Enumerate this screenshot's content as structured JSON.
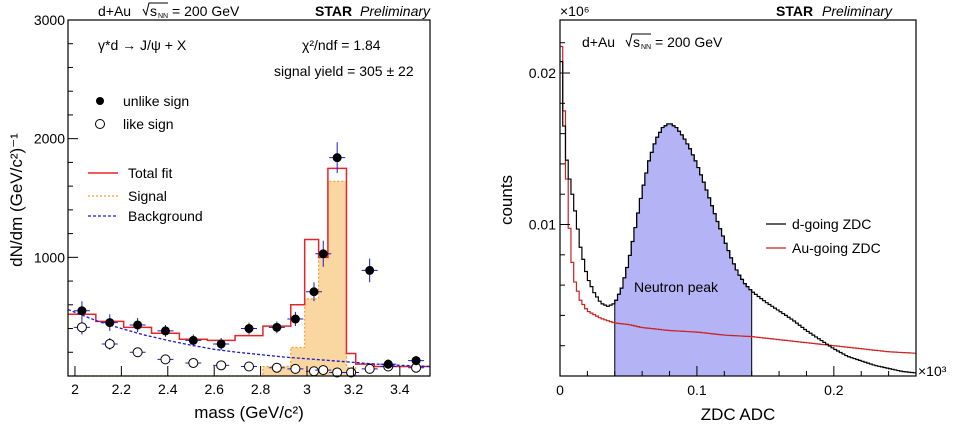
{
  "chart_data": [
    {
      "type": "scatter",
      "header": {
        "system": "d+Au",
        "energy_sym": "s",
        "energy_sub": "NN",
        "energy_val": "= 200 GeV",
        "experiment": "STAR",
        "status": "Preliminary"
      },
      "xlabel": "mass (GeV/c²)",
      "ylabel": "dN/dm (GeV/c²)⁻¹",
      "xlim": [
        1.97,
        3.53
      ],
      "ylim": [
        0,
        3000
      ],
      "x_ticks": [
        2,
        2.2,
        2.4,
        2.6,
        2.8,
        3,
        3.2,
        3.4
      ],
      "x_tick_labels": [
        "2",
        "2.2",
        "2.4",
        "2.6",
        "2.8",
        "3",
        "3.2",
        "3.4"
      ],
      "y_ticks": [
        1000,
        2000,
        3000
      ],
      "y_tick_labels": [
        "1000",
        "2000",
        "3000"
      ],
      "annotations": {
        "process": "γ*d → J/ψ + X",
        "chi2": "χ²/ndf = 1.84",
        "yield": "signal yield = 305 ± 22"
      },
      "legend": {
        "placement": "top-left",
        "unlike": "unlike sign",
        "like": "like sign",
        "total": "Total fit",
        "signal": "Signal",
        "background": "Background"
      },
      "colors": {
        "total": "#e8242b",
        "signal_fill": "#fad7a0",
        "signal_line": "#f0a030",
        "background": "#1a1acc"
      },
      "series": [
        {
          "name": "unlike sign",
          "marker": "filled-circle",
          "x": [
            2.03,
            2.15,
            2.27,
            2.39,
            2.51,
            2.63,
            2.75,
            2.87,
            2.95,
            3.03,
            3.07,
            3.13,
            3.27,
            3.35,
            3.47
          ],
          "y": [
            550,
            450,
            430,
            380,
            300,
            270,
            400,
            410,
            480,
            710,
            1030,
            1840,
            890,
            100,
            130
          ],
          "err": [
            80,
            70,
            60,
            50,
            50,
            50,
            50,
            50,
            60,
            80,
            110,
            130,
            100,
            40,
            40
          ]
        },
        {
          "name": "like sign",
          "marker": "open-circle",
          "x": [
            2.03,
            2.15,
            2.27,
            2.39,
            2.51,
            2.63,
            2.75,
            2.87,
            2.95,
            3.03,
            3.07,
            3.13,
            3.19,
            3.27,
            3.35,
            3.47
          ],
          "y": [
            410,
            270,
            200,
            140,
            110,
            90,
            80,
            70,
            60,
            40,
            50,
            30,
            30,
            60,
            80,
            70
          ],
          "err": [
            60,
            50,
            40,
            35,
            30,
            30,
            30,
            30,
            30,
            25,
            25,
            20,
            20,
            25,
            25,
            25
          ]
        },
        {
          "name": "Total fit",
          "style": "solid-histogram",
          "edges": [
            1.97,
            2.09,
            2.21,
            2.33,
            2.45,
            2.57,
            2.69,
            2.81,
            2.93,
            2.99,
            3.05,
            3.09,
            3.17,
            3.21,
            3.29,
            3.41,
            3.53
          ],
          "values": [
            520,
            460,
            410,
            360,
            310,
            300,
            340,
            420,
            600,
            1150,
            1000,
            1750,
            190,
            100,
            80,
            80
          ]
        },
        {
          "name": "Signal",
          "style": "filled-histogram",
          "edges": [
            1.97,
            2.09,
            2.21,
            2.33,
            2.45,
            2.57,
            2.69,
            2.81,
            2.93,
            2.99,
            3.05,
            3.09,
            3.17,
            3.21,
            3.53
          ],
          "values": [
            0,
            0,
            0,
            0,
            0,
            0,
            0,
            80,
            240,
            650,
            1020,
            1640,
            70,
            0,
            0
          ]
        },
        {
          "name": "Background",
          "style": "dashed-curve",
          "x": [
            1.97,
            2.1,
            2.2,
            2.3,
            2.4,
            2.5,
            2.6,
            2.7,
            2.8,
            2.9,
            3.0,
            3.1,
            3.2,
            3.3,
            3.4,
            3.53
          ],
          "y": [
            560,
            460,
            400,
            345,
            300,
            260,
            225,
            200,
            180,
            160,
            145,
            130,
            115,
            100,
            90,
            80
          ]
        }
      ]
    },
    {
      "type": "line",
      "header": {
        "experiment": "STAR",
        "status": "Preliminary"
      },
      "y_multiplier": "×10⁶",
      "x_multiplier": "×10³",
      "annotation": {
        "system": "d+Au",
        "energy_sym": "s",
        "energy_sub": "NN",
        "energy_val": "= 200 GeV"
      },
      "peak_label": "Neutron peak",
      "xlabel": "ZDC ADC",
      "ylabel": "counts",
      "xlim": [
        0,
        0.26
      ],
      "ylim": [
        0,
        0.0235
      ],
      "x_ticks": [
        0,
        0.1,
        0.2
      ],
      "x_tick_labels": [
        "0",
        "0.1",
        "0.2"
      ],
      "y_ticks": [
        0.01,
        0.02
      ],
      "y_tick_labels": [
        "0.01",
        "0.02"
      ],
      "legend": {
        "placement": "middle-right",
        "d_going": "d-going ZDC",
        "au_going": "Au-going ZDC"
      },
      "colors": {
        "d_going": "#000000",
        "au_going": "#cc2222",
        "peak_fill": "#b3b3f5"
      },
      "peak_range": [
        0.04,
        0.14
      ],
      "series": [
        {
          "name": "d-going ZDC",
          "x": [
            0.0,
            0.002,
            0.004,
            0.006,
            0.008,
            0.01,
            0.015,
            0.02,
            0.025,
            0.03,
            0.035,
            0.04,
            0.045,
            0.05,
            0.055,
            0.06,
            0.065,
            0.07,
            0.075,
            0.08,
            0.085,
            0.09,
            0.095,
            0.1,
            0.105,
            0.11,
            0.115,
            0.12,
            0.125,
            0.13,
            0.135,
            0.14,
            0.15,
            0.16,
            0.17,
            0.18,
            0.19,
            0.2,
            0.21,
            0.22,
            0.23,
            0.24,
            0.25,
            0.26
          ],
          "y": [
            0.0235,
            0.018,
            0.015,
            0.0135,
            0.0125,
            0.0115,
            0.0085,
            0.0065,
            0.0055,
            0.0048,
            0.0046,
            0.0048,
            0.0058,
            0.0075,
            0.0098,
            0.0122,
            0.0142,
            0.0156,
            0.0164,
            0.0167,
            0.0164,
            0.0158,
            0.015,
            0.014,
            0.0128,
            0.0115,
            0.0102,
            0.009,
            0.0078,
            0.0068,
            0.0061,
            0.0056,
            0.0049,
            0.0043,
            0.0037,
            0.003,
            0.0024,
            0.0018,
            0.0013,
            0.001,
            0.0007,
            0.0005,
            0.0003,
            0.0002
          ]
        },
        {
          "name": "Au-going ZDC",
          "x": [
            0.0,
            0.002,
            0.004,
            0.006,
            0.008,
            0.01,
            0.015,
            0.02,
            0.03,
            0.04,
            0.05,
            0.06,
            0.08,
            0.1,
            0.12,
            0.14,
            0.16,
            0.18,
            0.2,
            0.22,
            0.24,
            0.26
          ],
          "y": [
            0.0235,
            0.02,
            0.015,
            0.011,
            0.0085,
            0.0065,
            0.005,
            0.0043,
            0.0038,
            0.0035,
            0.0034,
            0.0032,
            0.003,
            0.0029,
            0.0027,
            0.0026,
            0.0024,
            0.0022,
            0.002,
            0.0018,
            0.0016,
            0.0015
          ]
        }
      ]
    }
  ]
}
